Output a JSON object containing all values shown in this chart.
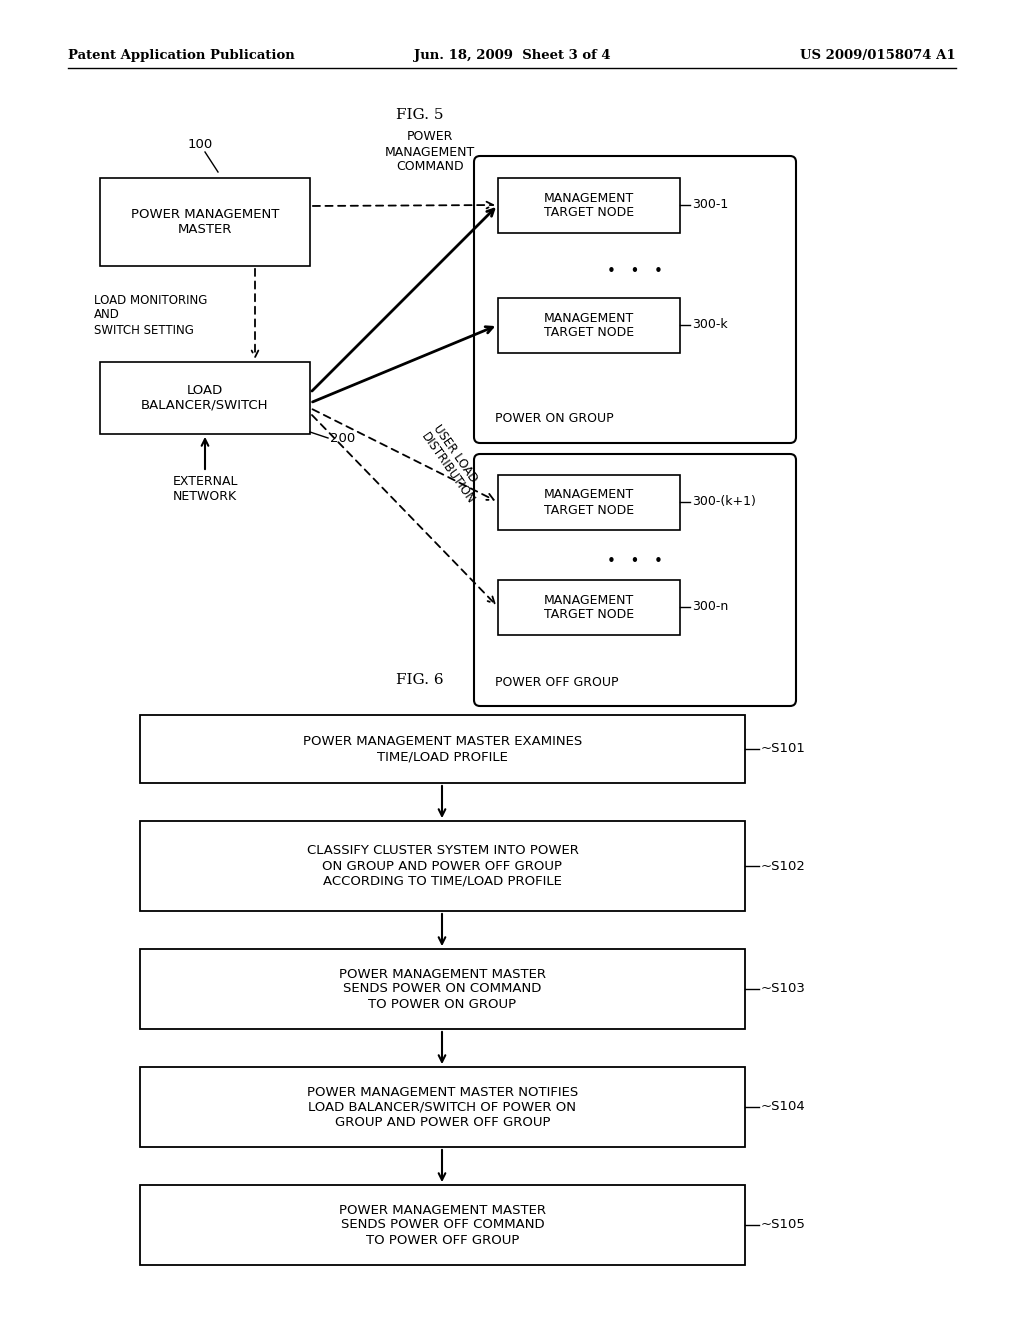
{
  "header_left": "Patent Application Publication",
  "header_mid": "Jun. 18, 2009  Sheet 3 of 4",
  "header_right": "US 2009/0158074 A1",
  "fig5_title": "FIG. 5",
  "fig6_title": "FIG. 6",
  "background": "#ffffff",
  "fig5": {
    "pmm_label": "POWER MANAGEMENT\nMASTER",
    "pmm_id": "100",
    "lbs_label": "LOAD\nBALANCER/SWITCH",
    "lbs_id": "200",
    "pmc_label": "POWER\nMANAGEMENT\nCOMMAND",
    "lms_label": "LOAD MONITORING\nAND\nSWITCH SETTING",
    "uld_label": "USER LOAD\nDISTRIBUTION",
    "ext_label": "EXTERNAL\nNETWORK",
    "node_label": "MANAGEMENT\nTARGET NODE",
    "power_on_group": "POWER ON GROUP",
    "power_off_group": "POWER OFF GROUP",
    "nodes_on": [
      "300-1",
      "300-k"
    ],
    "nodes_off": [
      "300-(k+1)",
      "300-n"
    ]
  },
  "fig6": {
    "steps": [
      {
        "id": "S101",
        "text": "POWER MANAGEMENT MASTER EXAMINES\nTIME/LOAD PROFILE"
      },
      {
        "id": "S102",
        "text": "CLASSIFY CLUSTER SYSTEM INTO POWER\nON GROUP AND POWER OFF GROUP\nACCORDING TO TIME/LOAD PROFILE"
      },
      {
        "id": "S103",
        "text": "POWER MANAGEMENT MASTER\nSENDS POWER ON COMMAND\nTO POWER ON GROUP"
      },
      {
        "id": "S104",
        "text": "POWER MANAGEMENT MASTER NOTIFIES\nLOAD BALANCER/SWITCH OF POWER ON\nGROUP AND POWER OFF GROUP"
      },
      {
        "id": "S105",
        "text": "POWER MANAGEMENT MASTER\nSENDS POWER OFF COMMAND\nTO POWER OFF GROUP"
      }
    ]
  }
}
